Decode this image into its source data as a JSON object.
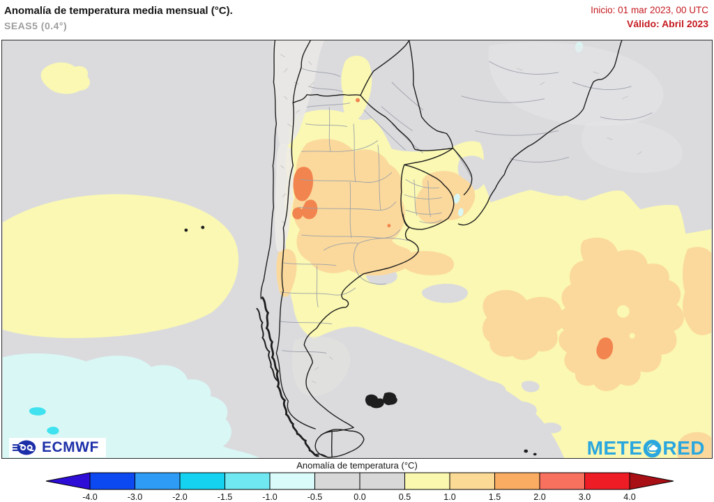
{
  "header": {
    "title": "Anomalía de temperatura media mensual (°C).",
    "subtitle": "SEAS5 (0.4°)",
    "init_label": "Inicio: 01 mar 2023, 00 UTC",
    "valid_label": "Válido: Abril 2023",
    "accent_red": "#c41a20"
  },
  "logos": {
    "ecmwf": "ECMWF",
    "meteored_prefix": "METE",
    "meteored_suffix": "RED",
    "ecmwf_blue": "#1d2fa8",
    "meteored_blue": "#2aa7df"
  },
  "colorbar": {
    "title": "Anomalía de temperatura (°C)",
    "ticks": [
      "-4.0",
      "-3.0",
      "-2.0",
      "-1.5",
      "-1.0",
      "-0.5",
      "0.0",
      "0.5",
      "1.0",
      "1.5",
      "2.0",
      "3.0",
      "4.0"
    ],
    "segments": [
      "#0d49f0",
      "#2e9bf5",
      "#15d2f0",
      "#6fe8f2",
      "#d9fbfa",
      "#d8d8d8",
      "#d8d8d8",
      "#faf7ae",
      "#fbda96",
      "#faac62",
      "#f8715f",
      "#ee1c25"
    ],
    "arrow_left": "#2e0dd6",
    "arrow_right": "#a81016"
  },
  "anomaly_colors": {
    "near_zero": "#dbdbde",
    "p05_10": "#faf8b2",
    "p10_15": "#fbd99c",
    "p15_20": "#f2854f",
    "m05_10": "#d8f7f5",
    "m10_15": "#3fe2ee"
  }
}
